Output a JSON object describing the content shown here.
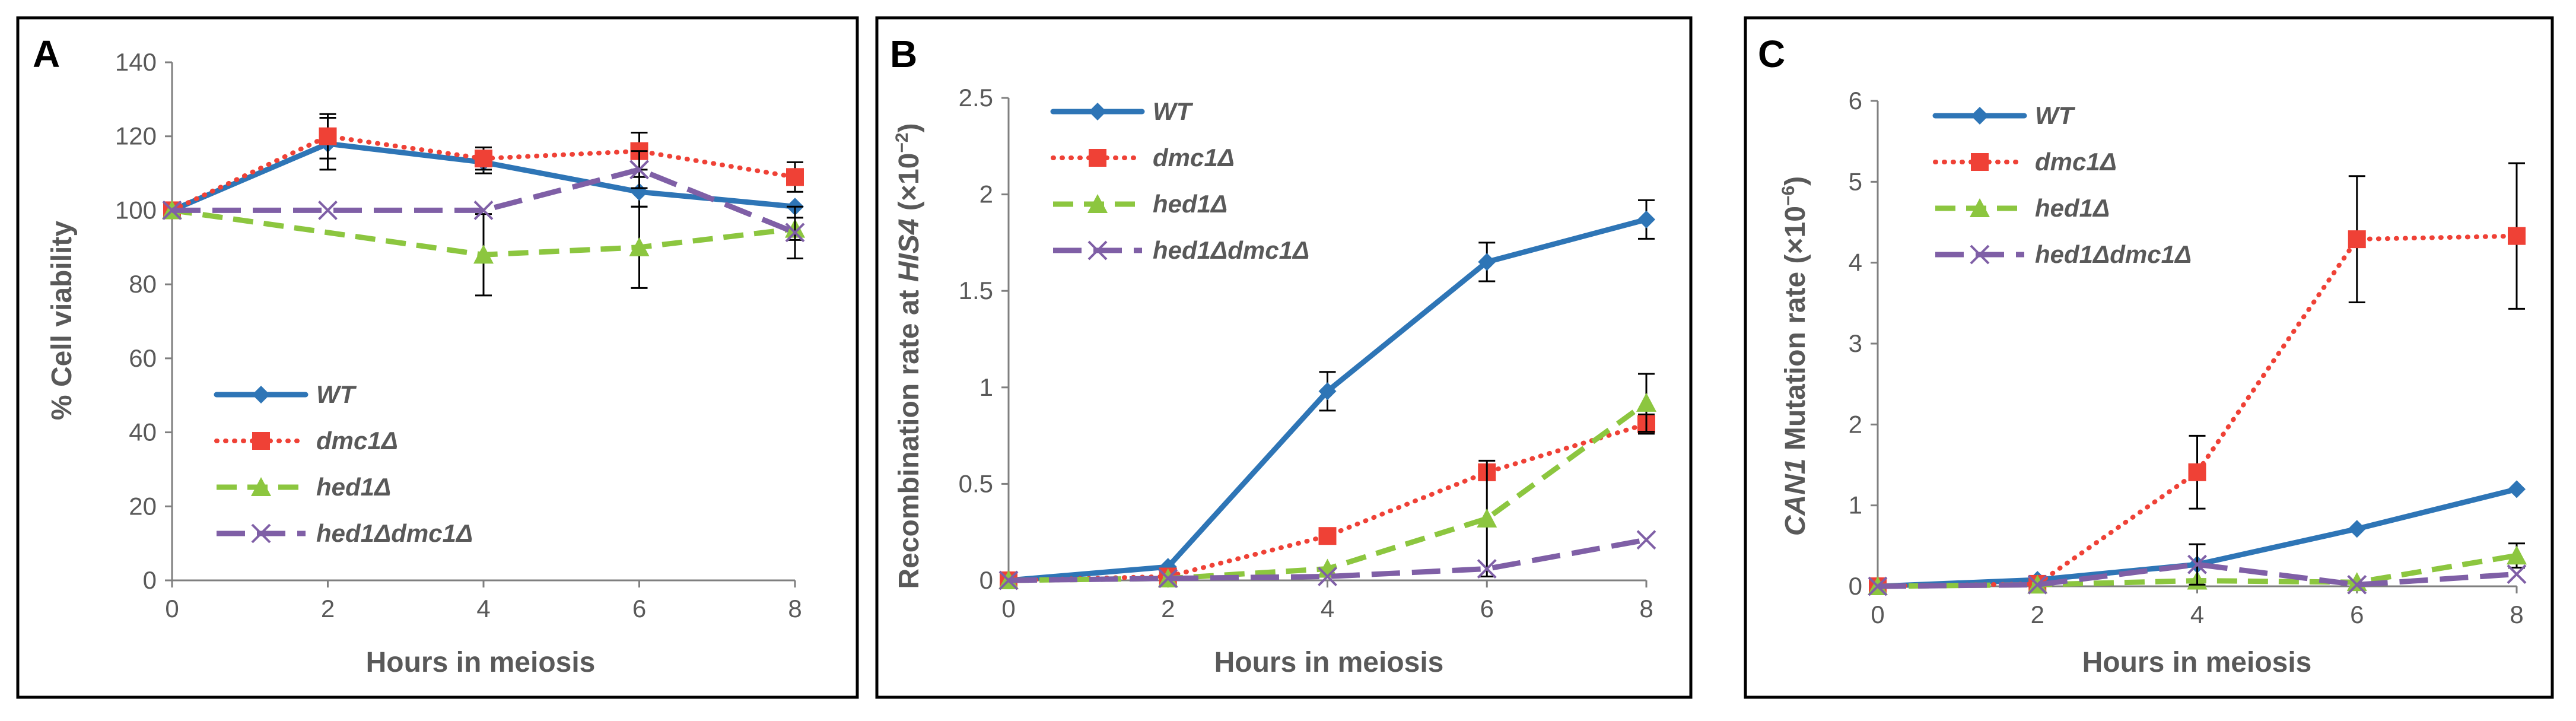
{
  "chart_data": [
    {
      "panel": "A",
      "type": "line",
      "xlabel": "Hours in meiosis",
      "ylabel": "% Cell viability",
      "x": [
        0,
        2,
        4,
        6,
        8
      ],
      "xticks": [
        "0",
        "2",
        "4",
        "6",
        "8"
      ],
      "ylim": [
        0,
        140
      ],
      "yticks": [
        "0",
        "20",
        "40",
        "60",
        "80",
        "100",
        "120",
        "140"
      ],
      "ytick_values": [
        0,
        20,
        40,
        60,
        80,
        100,
        120,
        140
      ],
      "legend_position": "bottom-left",
      "series": [
        {
          "name": "WT",
          "values": [
            100,
            118,
            113,
            105,
            101
          ],
          "err": [
            0,
            7,
            3,
            4,
            0
          ]
        },
        {
          "name": "dmc1Δ",
          "values": [
            100,
            120,
            114,
            116,
            109
          ],
          "err": [
            0,
            6,
            3,
            5,
            4
          ]
        },
        {
          "name": "hed1Δ",
          "values": [
            100,
            null,
            88,
            90,
            95
          ],
          "err": [
            0,
            0,
            11,
            11,
            3
          ]
        },
        {
          "name": "hed1Δdmc1Δ",
          "values": [
            100,
            100,
            100,
            111,
            94
          ],
          "err": [
            0,
            0,
            0,
            5,
            7
          ]
        }
      ]
    },
    {
      "panel": "B",
      "type": "line",
      "xlabel": "Hours in meiosis",
      "ylabel_parts": [
        "Recombination rate at ",
        "HIS4",
        " (×10",
        "−2",
        ")"
      ],
      "x": [
        0,
        2,
        4,
        6,
        8
      ],
      "xticks": [
        "0",
        "2",
        "4",
        "6",
        "8"
      ],
      "ylim": [
        0,
        2.5
      ],
      "yticks": [
        "0",
        "0.5",
        "1",
        "1.5",
        "2",
        "2.5"
      ],
      "ytick_values": [
        0,
        0.5,
        1,
        1.5,
        2,
        2.5
      ],
      "legend_position": "top-left",
      "series": [
        {
          "name": "WT",
          "values": [
            0,
            0.07,
            0.98,
            1.65,
            1.87
          ],
          "err": [
            0,
            0,
            0.1,
            0.1,
            0.1
          ]
        },
        {
          "name": "dmc1Δ",
          "values": [
            0,
            0.02,
            0.23,
            0.56,
            0.81
          ],
          "err": [
            0,
            0,
            0,
            0,
            0.05
          ]
        },
        {
          "name": "hed1Δ",
          "values": [
            0,
            0.01,
            0.06,
            0.32,
            0.92
          ],
          "err": [
            0,
            0,
            0,
            0.3,
            0.15
          ]
        },
        {
          "name": "hed1Δdmc1Δ",
          "values": [
            0,
            0.01,
            0.02,
            0.06,
            0.21
          ],
          "err": [
            0,
            0,
            0,
            0,
            0
          ]
        }
      ]
    },
    {
      "panel": "C",
      "type": "line",
      "xlabel": "Hours in meiosis",
      "ylabel_parts": [
        "CAN1",
        " Mutation rate (×10",
        "−6",
        ")"
      ],
      "x": [
        0,
        2,
        4,
        6,
        8
      ],
      "xticks": [
        "0",
        "2",
        "4",
        "6",
        "8"
      ],
      "ylim": [
        0,
        6
      ],
      "yticks": [
        "0",
        "1",
        "2",
        "3",
        "4",
        "5",
        "6"
      ],
      "ytick_values": [
        0,
        1,
        2,
        3,
        4,
        5,
        6
      ],
      "legend_position": "top-left",
      "series": [
        {
          "name": "WT",
          "values": [
            0,
            0.08,
            0.27,
            0.71,
            1.2
          ],
          "err": [
            0,
            0,
            0,
            0,
            0
          ]
        },
        {
          "name": "dmc1Δ",
          "values": [
            0,
            0.03,
            1.41,
            4.29,
            4.33
          ],
          "err": [
            0,
            0,
            0.45,
            0.78,
            0.9
          ]
        },
        {
          "name": "hed1Δ",
          "values": [
            0,
            0.02,
            0.07,
            0.05,
            0.38
          ],
          "err": [
            0,
            0,
            0,
            0,
            0.15
          ]
        },
        {
          "name": "hed1Δdmc1Δ",
          "values": [
            0,
            0.02,
            0.27,
            0.02,
            0.15
          ],
          "err": [
            0,
            0,
            0.25,
            0,
            0
          ]
        }
      ]
    }
  ],
  "series_styles": [
    {
      "color": "#2e75b6",
      "dash": "none",
      "marker": "diamond"
    },
    {
      "color": "#ef4136",
      "dash": "dotted",
      "marker": "square"
    },
    {
      "color": "#8cc63f",
      "dash": "dashed",
      "marker": "triangle"
    },
    {
      "color": "#7f5fa6",
      "dash": "longdash",
      "marker": "x"
    }
  ]
}
